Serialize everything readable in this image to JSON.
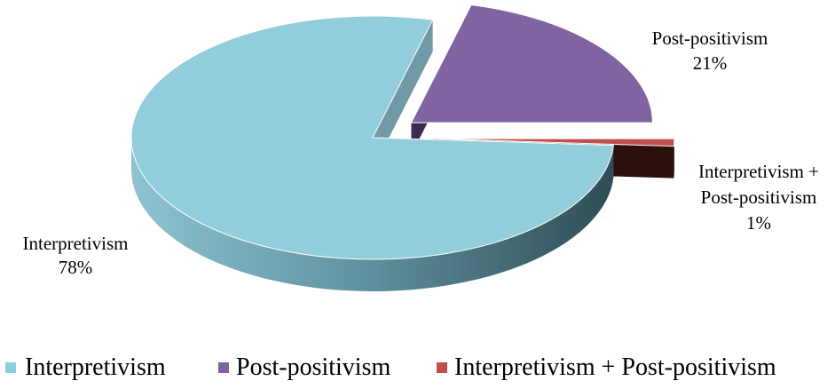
{
  "chart_data": {
    "type": "pie",
    "title": "",
    "style": "3d-exploded",
    "legend_position": "bottom",
    "slices": [
      {
        "name": "Interpretivism",
        "value": 78,
        "label": "78%",
        "color": "#92CDDC",
        "side_color": "#5f9aa8"
      },
      {
        "name": "Post-positivism",
        "value": 21,
        "label": "21%",
        "color": "#8064A2",
        "side_color": "#4f3a6e"
      },
      {
        "name": "Interpretivism + Post-positivism",
        "value": 1,
        "label": "1%",
        "color": "#C0504D",
        "side_color": "#3a1714"
      }
    ]
  }
}
